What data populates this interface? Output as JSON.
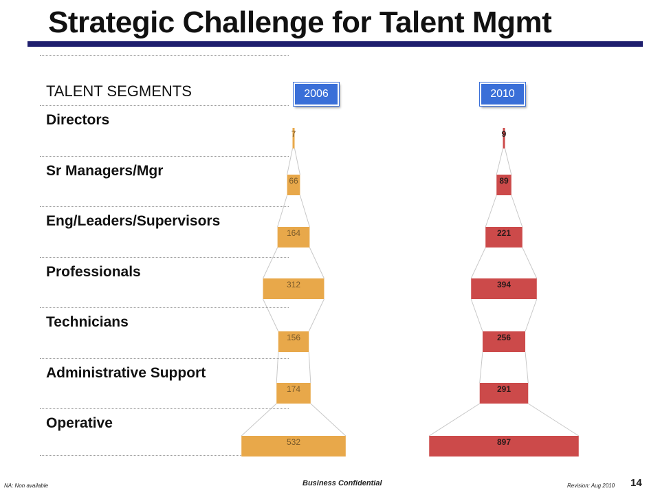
{
  "slide": {
    "title": "Strategic Challenge for Talent Mgmt",
    "segments_header": "TALENT SEGMENTS",
    "segments": [
      "Directors",
      "Sr Managers/Mgr",
      "Eng/Leaders/Supervisors",
      "Professionals",
      "Technicians",
      "Administrative Support",
      "Operative"
    ]
  },
  "chart_data": {
    "type": "bar",
    "subtype": "funnel",
    "categories": [
      "Directors",
      "Sr Managers/Mgr",
      "Eng/Leaders/Supervisors",
      "Professionals",
      "Technicians",
      "Administrative Support",
      "Operative"
    ],
    "series": [
      {
        "name": "2006",
        "values": [
          7,
          66,
          164,
          312,
          156,
          174,
          532
        ],
        "color": "#e8a84a"
      },
      {
        "name": "2010",
        "values": [
          9,
          89,
          221,
          394,
          256,
          291,
          897
        ],
        "color": "#cc4a4a"
      }
    ],
    "overlap_color": "#d9731c",
    "label_colors": {
      "2006": "#7a5a2a",
      "2010": "#2a1a1a"
    }
  },
  "footer": {
    "note": "NA: Non available",
    "confidential": "Business Confidential",
    "revision": "Revision: Aug 2010",
    "page": "14"
  }
}
